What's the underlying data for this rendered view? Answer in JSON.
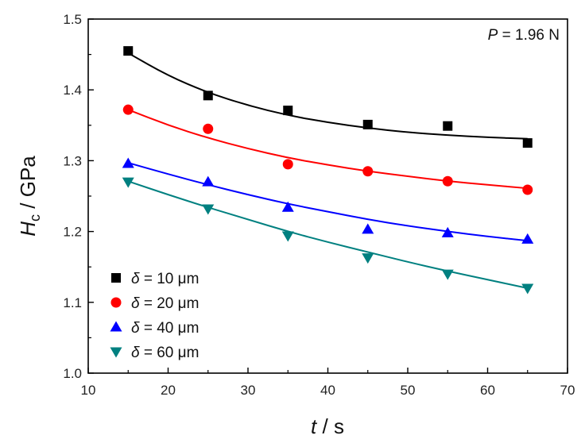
{
  "chart_data": {
    "type": "scatter",
    "xlabel": {
      "var": "t",
      "unit": " / s"
    },
    "ylabel": {
      "var": "H",
      "sub": "c",
      "unit": " / GPa"
    },
    "xlim": [
      10,
      70
    ],
    "ylim": [
      1.0,
      1.5
    ],
    "xticks": [
      "10",
      "20",
      "30",
      "40",
      "50",
      "60",
      "70"
    ],
    "yticks": [
      "1.0",
      "1.1",
      "1.2",
      "1.3",
      "1.4",
      "1.5"
    ],
    "grid": false,
    "legend_position": "bottom-left",
    "annotation": {
      "var": "P",
      "text": " = 1.96 N"
    },
    "x": [
      15,
      25,
      35,
      45,
      55,
      65
    ],
    "series": [
      {
        "symbol": "δ",
        "label": " = 10 μm",
        "marker": "square",
        "color": "#000000",
        "values": [
          1.455,
          1.392,
          1.371,
          1.351,
          1.349,
          1.325
        ],
        "fit": [
          [
            15,
            1.452
          ],
          [
            20,
            1.42
          ],
          [
            25,
            1.396
          ],
          [
            30,
            1.378
          ],
          [
            35,
            1.364
          ],
          [
            40,
            1.354
          ],
          [
            45,
            1.346
          ],
          [
            50,
            1.34
          ],
          [
            55,
            1.336
          ],
          [
            60,
            1.333
          ],
          [
            65,
            1.331
          ]
        ]
      },
      {
        "symbol": "δ",
        "label": " = 20 μm",
        "marker": "circle",
        "color": "#ff0000",
        "values": [
          1.372,
          1.345,
          1.295,
          1.285,
          1.271,
          1.259
        ],
        "fit": [
          [
            15,
            1.372
          ],
          [
            20,
            1.35
          ],
          [
            25,
            1.332
          ],
          [
            30,
            1.317
          ],
          [
            35,
            1.304
          ],
          [
            40,
            1.294
          ],
          [
            45,
            1.285
          ],
          [
            50,
            1.278
          ],
          [
            55,
            1.271
          ],
          [
            60,
            1.266
          ],
          [
            65,
            1.261
          ]
        ]
      },
      {
        "symbol": "δ",
        "label": " = 40 μm",
        "marker": "triangle-up",
        "color": "#0000ff",
        "values": [
          1.296,
          1.27,
          1.234,
          1.203,
          1.198,
          1.189
        ],
        "fit": [
          [
            15,
            1.297
          ],
          [
            20,
            1.281
          ],
          [
            25,
            1.266
          ],
          [
            30,
            1.252
          ],
          [
            35,
            1.239
          ],
          [
            40,
            1.228
          ],
          [
            45,
            1.217
          ],
          [
            50,
            1.208
          ],
          [
            55,
            1.2
          ],
          [
            60,
            1.193
          ],
          [
            65,
            1.187
          ]
        ]
      },
      {
        "symbol": "δ",
        "label": " = 60 μm",
        "marker": "triangle-down",
        "color": "#008080",
        "values": [
          1.27,
          1.232,
          1.194,
          1.163,
          1.14,
          1.12
        ],
        "fit": [
          [
            15,
            1.271
          ],
          [
            20,
            1.252
          ],
          [
            25,
            1.234
          ],
          [
            30,
            1.217
          ],
          [
            35,
            1.2
          ],
          [
            40,
            1.185
          ],
          [
            45,
            1.171
          ],
          [
            50,
            1.157
          ],
          [
            55,
            1.144
          ],
          [
            60,
            1.132
          ],
          [
            65,
            1.12
          ]
        ]
      }
    ]
  }
}
